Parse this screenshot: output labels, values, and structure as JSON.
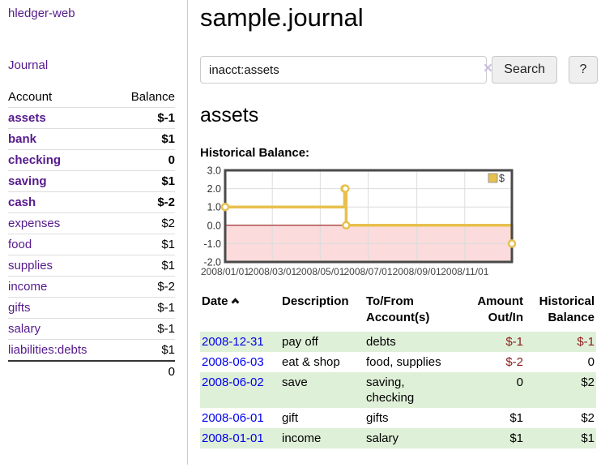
{
  "sidebar": {
    "brand": "hledger-web",
    "journal_label": "Journal",
    "accounts_table": {
      "headers": {
        "account": "Account",
        "balance": "Balance"
      },
      "rows": [
        {
          "name": "assets",
          "name_class": "ind1 b",
          "bal": "$-1",
          "bal_class": "neg b"
        },
        {
          "name": "bank",
          "name_class": "ind2 b",
          "bal": "$1",
          "bal_class": "b"
        },
        {
          "name": "checking",
          "name_class": "ind3 b",
          "bal": "0",
          "bal_class": "b"
        },
        {
          "name": "saving",
          "name_class": "ind3 b",
          "bal": "$1",
          "bal_class": "b"
        },
        {
          "name": "cash",
          "name_class": "ind2 b",
          "bal": "$-2",
          "bal_class": "neg b"
        },
        {
          "name": "expenses",
          "name_class": "ind1",
          "bal": "$2",
          "bal_class": ""
        },
        {
          "name": "food",
          "name_class": "ind2",
          "bal": "$1",
          "bal_class": ""
        },
        {
          "name": "supplies",
          "name_class": "ind2",
          "bal": "$1",
          "bal_class": ""
        },
        {
          "name": "income",
          "name_class": "ind1",
          "bal": "$-2",
          "bal_class": "soft"
        },
        {
          "name": "gifts",
          "name_class": "ind2",
          "bal": "$-1",
          "bal_class": "soft"
        },
        {
          "name": "salary",
          "name_class": "ind2 blue",
          "bal": "$-1",
          "bal_class": "soft"
        },
        {
          "name": "liabilities:debts",
          "name_class": "ind1",
          "bal": "$1",
          "bal_class": ""
        }
      ],
      "total": "0"
    }
  },
  "header": {
    "title": "sample.journal"
  },
  "search": {
    "query": "inacct:assets",
    "clear_icon": "×",
    "search_label": "Search",
    "help_label": "?"
  },
  "account_page": {
    "title": "assets",
    "chart_label": "Historical Balance:"
  },
  "chart_data": {
    "type": "line",
    "title": "Historical Balance:",
    "series": [
      {
        "name": "$",
        "color": "#e8c04d",
        "step": true,
        "points": [
          {
            "date": "2008/01/01",
            "value": 1
          },
          {
            "date": "2008/06/01",
            "value": 2
          },
          {
            "date": "2008/06/02",
            "value": 2
          },
          {
            "date": "2008/06/03",
            "value": 0
          },
          {
            "date": "2008/12/31",
            "value": -1
          }
        ]
      }
    ],
    "x_range": [
      "2008/01/01",
      "2008/12/31"
    ],
    "ylim": [
      -2,
      3
    ],
    "yticks": [
      3.0,
      2.0,
      1.0,
      0.0,
      -1.0,
      -2.0
    ],
    "xticks": [
      "2008/01/01",
      "2008/03/01",
      "2008/05/01",
      "2008/07/01",
      "2008/09/01",
      "2008/11/01"
    ],
    "legend": {
      "label": "$",
      "swatch": "#e8c04d",
      "position": "top-right"
    },
    "grid": true,
    "negative_fill": "#fbdbdb",
    "zero_line_color": "#8b0000",
    "grid_color": "#dcdcdc",
    "frame_color": "#4a4a4a"
  },
  "register_table": {
    "headers": {
      "date": "Date",
      "description": "Description",
      "accounts": "To/From Account(s)",
      "amount": "Amount Out/In",
      "balance": "Historical Balance"
    },
    "rows": [
      {
        "date": "2008-12-31",
        "description": "pay off",
        "accounts": "debts",
        "amount": "$-1",
        "amount_class": "neg",
        "balance": "$-1",
        "balance_class": "neg"
      },
      {
        "date": "2008-06-03",
        "description": "eat & shop",
        "accounts": "food, supplies",
        "amount": "$-2",
        "amount_class": "neg",
        "balance": "0",
        "balance_class": ""
      },
      {
        "date": "2008-06-02",
        "description": "save",
        "accounts": "saving, checking",
        "amount": "0",
        "amount_class": "",
        "balance": "$2",
        "balance_class": ""
      },
      {
        "date": "2008-06-01",
        "description": "gift",
        "accounts": "gifts",
        "amount": "$1",
        "amount_class": "",
        "balance": "$2",
        "balance_class": ""
      },
      {
        "date": "2008-01-01",
        "description": "income",
        "accounts": "salary",
        "amount": "$1",
        "amount_class": "",
        "balance": "$1",
        "balance_class": ""
      }
    ]
  },
  "colors": {
    "link_visited_purple": "#551a8b",
    "link_blue": "#0000ee",
    "negative_red": "#8b1c1c",
    "negative_soft_red": "#bd6d6d",
    "row_stripe_green": "#dff0d8",
    "series_yellow": "#e8c04d"
  }
}
